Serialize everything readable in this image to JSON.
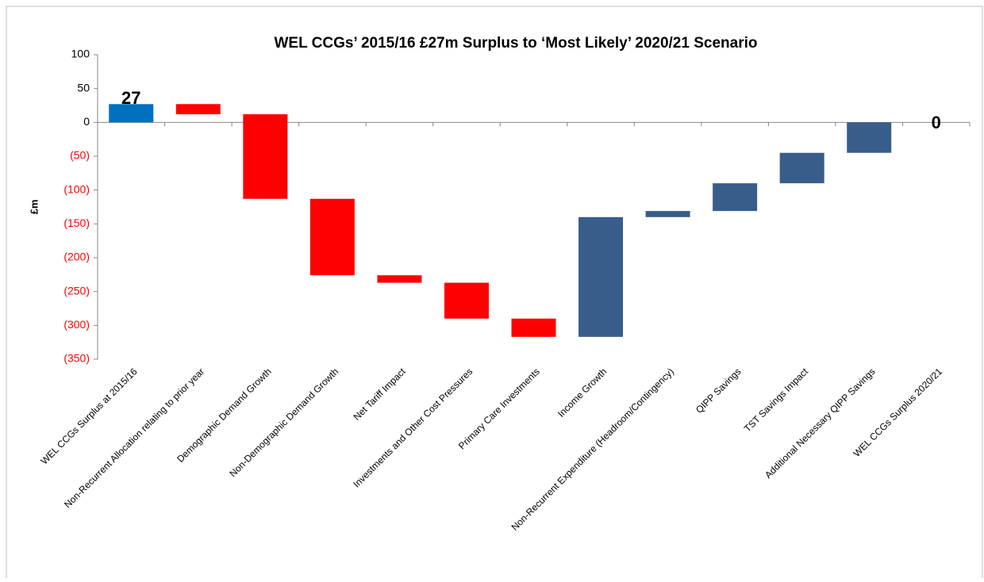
{
  "chart_data": {
    "type": "waterfall",
    "title": "WEL CCGs’ 2015/16 £27m Surplus to ‘Most Likely’ 2020/21 Scenario",
    "y_label": "£m",
    "categories": [
      "WEL CCGs Surplus at 2015/16",
      "Non-Recurrent Allocation relating to prior year",
      "Demographic Demand Growth",
      "Non-Demographic Demand Growth",
      "Net Tariff Impact",
      "Investments and Other Cost Pressures",
      "Primary Care Investments",
      "Income Growth",
      "Non-Recurrent Expenditure (Headroom/Contingency)",
      "QIPP Savings",
      "TST Savings Impact",
      "Additional Necessary QIPP Savings",
      "WEL CCGs Surplus 2020/21"
    ],
    "values": [
      27,
      -15,
      -125,
      -113,
      -11,
      -53,
      -27,
      177,
      9,
      41,
      45,
      45,
      0
    ],
    "total_categories": [
      0,
      12
    ],
    "colors": [
      "#0070c0",
      "#ff0000",
      "#ff0000",
      "#ff0000",
      "#ff0000",
      "#ff0000",
      "#ff0000",
      "#385d8a",
      "#385d8a",
      "#385d8a",
      "#385d8a",
      "#385d8a",
      "#385d8a"
    ],
    "ylim": [
      -350,
      100
    ],
    "yticks": [
      {
        "value": -350,
        "label": "(350)"
      },
      {
        "value": -300,
        "label": "(300)"
      },
      {
        "value": -250,
        "label": "(250)"
      },
      {
        "value": -200,
        "label": "(200)"
      },
      {
        "value": -150,
        "label": "(150)"
      },
      {
        "value": -100,
        "label": "(100)"
      },
      {
        "value": -50,
        "label": "(50)"
      },
      0,
      50,
      100
    ],
    "negative_tick_color": "#ff0000"
  }
}
